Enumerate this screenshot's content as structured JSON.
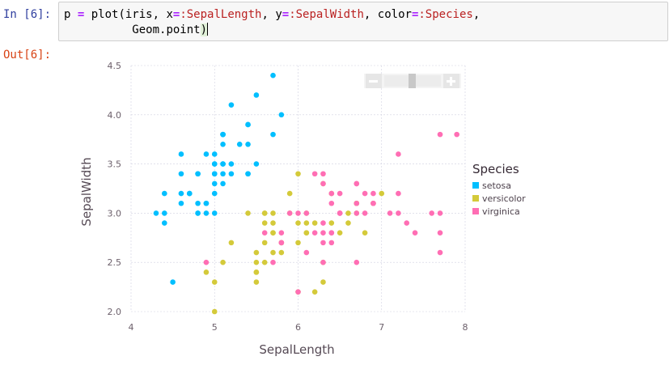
{
  "cell": {
    "in_prompt": "In [6]:",
    "out_prompt": "Out[6]:",
    "code": {
      "line1_a": "p ",
      "line1_eq": "=",
      "line1_b": " plot(iris, x",
      "line1_eq2": "=",
      "line1_sym1": ":SepalLength",
      "line1_c": ", y",
      "line1_eq3": "=",
      "line1_sym2": ":SepalWidth",
      "line1_d": ", color",
      "line1_eq4": "=",
      "line1_sym3": ":Species",
      "line1_e": ",",
      "line2_indent": "          ",
      "line2_a": "Geom.point",
      "line2_paren": ")"
    }
  },
  "zoom_controls": {
    "minus_icon": "minus-icon",
    "plus_icon": "plus-icon"
  },
  "chart_data": {
    "type": "scatter",
    "xlabel": "SepalLength",
    "ylabel": "SepalWidth",
    "xlim": [
      4,
      8
    ],
    "ylim": [
      2.0,
      4.5
    ],
    "x_ticks": [
      "4",
      "5",
      "6",
      "7",
      "8"
    ],
    "y_ticks": [
      "2.0",
      "2.5",
      "3.0",
      "3.5",
      "4.0",
      "4.5"
    ],
    "grid": true,
    "legend_title": "Species",
    "legend_position": "right",
    "series": [
      {
        "name": "setosa",
        "color": "#00bfff",
        "points": [
          [
            5.1,
            3.5
          ],
          [
            4.9,
            3.0
          ],
          [
            4.7,
            3.2
          ],
          [
            4.6,
            3.1
          ],
          [
            5.0,
            3.6
          ],
          [
            5.4,
            3.9
          ],
          [
            4.6,
            3.4
          ],
          [
            5.0,
            3.4
          ],
          [
            4.4,
            2.9
          ],
          [
            4.9,
            3.1
          ],
          [
            5.4,
            3.7
          ],
          [
            4.8,
            3.4
          ],
          [
            4.8,
            3.0
          ],
          [
            4.3,
            3.0
          ],
          [
            5.8,
            4.0
          ],
          [
            5.7,
            4.4
          ],
          [
            5.4,
            3.9
          ],
          [
            5.1,
            3.5
          ],
          [
            5.7,
            3.8
          ],
          [
            5.1,
            3.8
          ],
          [
            5.4,
            3.4
          ],
          [
            5.1,
            3.7
          ],
          [
            4.6,
            3.6
          ],
          [
            5.1,
            3.3
          ],
          [
            4.8,
            3.4
          ],
          [
            5.0,
            3.0
          ],
          [
            5.0,
            3.4
          ],
          [
            5.2,
            3.5
          ],
          [
            5.2,
            3.4
          ],
          [
            4.7,
            3.2
          ],
          [
            4.8,
            3.1
          ],
          [
            5.4,
            3.4
          ],
          [
            5.2,
            4.1
          ],
          [
            5.5,
            4.2
          ],
          [
            4.9,
            3.1
          ],
          [
            5.0,
            3.2
          ],
          [
            5.5,
            3.5
          ],
          [
            4.9,
            3.6
          ],
          [
            4.4,
            3.0
          ],
          [
            5.1,
            3.4
          ],
          [
            5.0,
            3.5
          ],
          [
            4.5,
            2.3
          ],
          [
            4.4,
            3.2
          ],
          [
            5.0,
            3.5
          ],
          [
            5.1,
            3.8
          ],
          [
            4.8,
            3.0
          ],
          [
            5.1,
            3.8
          ],
          [
            4.6,
            3.2
          ],
          [
            5.3,
            3.7
          ],
          [
            5.0,
            3.3
          ]
        ]
      },
      {
        "name": "versicolor",
        "color": "#d4ca3a",
        "points": [
          [
            7.0,
            3.2
          ],
          [
            6.4,
            3.2
          ],
          [
            6.9,
            3.1
          ],
          [
            5.5,
            2.3
          ],
          [
            6.5,
            2.8
          ],
          [
            5.7,
            2.8
          ],
          [
            6.3,
            3.3
          ],
          [
            4.9,
            2.4
          ],
          [
            6.6,
            2.9
          ],
          [
            5.2,
            2.7
          ],
          [
            5.0,
            2.0
          ],
          [
            5.9,
            3.0
          ],
          [
            6.0,
            2.2
          ],
          [
            6.1,
            2.9
          ],
          [
            5.6,
            2.9
          ],
          [
            6.7,
            3.1
          ],
          [
            5.6,
            3.0
          ],
          [
            5.8,
            2.7
          ],
          [
            6.2,
            2.2
          ],
          [
            5.6,
            2.5
          ],
          [
            5.9,
            3.2
          ],
          [
            6.1,
            2.8
          ],
          [
            6.3,
            2.5
          ],
          [
            6.1,
            2.8
          ],
          [
            6.4,
            2.9
          ],
          [
            6.6,
            3.0
          ],
          [
            6.8,
            2.8
          ],
          [
            6.7,
            3.0
          ],
          [
            6.0,
            2.9
          ],
          [
            5.7,
            2.6
          ],
          [
            5.5,
            2.4
          ],
          [
            5.5,
            2.4
          ],
          [
            5.8,
            2.7
          ],
          [
            6.0,
            2.7
          ],
          [
            5.4,
            3.0
          ],
          [
            6.0,
            3.4
          ],
          [
            6.7,
            3.1
          ],
          [
            6.3,
            2.3
          ],
          [
            5.6,
            3.0
          ],
          [
            5.5,
            2.5
          ],
          [
            5.5,
            2.6
          ],
          [
            6.1,
            3.0
          ],
          [
            5.8,
            2.6
          ],
          [
            5.0,
            2.3
          ],
          [
            5.6,
            2.7
          ],
          [
            5.7,
            3.0
          ],
          [
            5.7,
            2.9
          ],
          [
            6.2,
            2.9
          ],
          [
            5.1,
            2.5
          ],
          [
            5.7,
            2.8
          ]
        ]
      },
      {
        "name": "virginica",
        "color": "#ff6eb4",
        "points": [
          [
            6.3,
            3.3
          ],
          [
            5.8,
            2.7
          ],
          [
            7.1,
            3.0
          ],
          [
            6.3,
            2.9
          ],
          [
            6.5,
            3.0
          ],
          [
            7.6,
            3.0
          ],
          [
            4.9,
            2.5
          ],
          [
            7.3,
            2.9
          ],
          [
            6.7,
            2.5
          ],
          [
            7.2,
            3.6
          ],
          [
            6.5,
            3.2
          ],
          [
            6.4,
            2.7
          ],
          [
            6.8,
            3.0
          ],
          [
            5.7,
            2.5
          ],
          [
            5.8,
            2.8
          ],
          [
            6.4,
            3.2
          ],
          [
            6.5,
            3.0
          ],
          [
            7.7,
            3.8
          ],
          [
            7.7,
            2.6
          ],
          [
            6.0,
            2.2
          ],
          [
            6.9,
            3.2
          ],
          [
            5.6,
            2.8
          ],
          [
            7.7,
            2.8
          ],
          [
            6.3,
            2.7
          ],
          [
            6.7,
            3.3
          ],
          [
            7.2,
            3.2
          ],
          [
            6.2,
            2.8
          ],
          [
            6.1,
            3.0
          ],
          [
            6.4,
            2.8
          ],
          [
            7.2,
            3.0
          ],
          [
            7.4,
            2.8
          ],
          [
            7.9,
            3.8
          ],
          [
            6.4,
            2.8
          ],
          [
            6.3,
            2.8
          ],
          [
            6.1,
            2.6
          ],
          [
            7.7,
            3.0
          ],
          [
            6.3,
            3.4
          ],
          [
            6.4,
            3.1
          ],
          [
            6.0,
            3.0
          ],
          [
            6.9,
            3.1
          ],
          [
            6.7,
            3.1
          ],
          [
            6.9,
            3.1
          ],
          [
            5.8,
            2.7
          ],
          [
            6.8,
            3.2
          ],
          [
            6.7,
            3.3
          ],
          [
            6.7,
            3.0
          ],
          [
            6.3,
            2.5
          ],
          [
            6.5,
            3.0
          ],
          [
            6.2,
            3.4
          ],
          [
            5.9,
            3.0
          ]
        ]
      }
    ]
  }
}
